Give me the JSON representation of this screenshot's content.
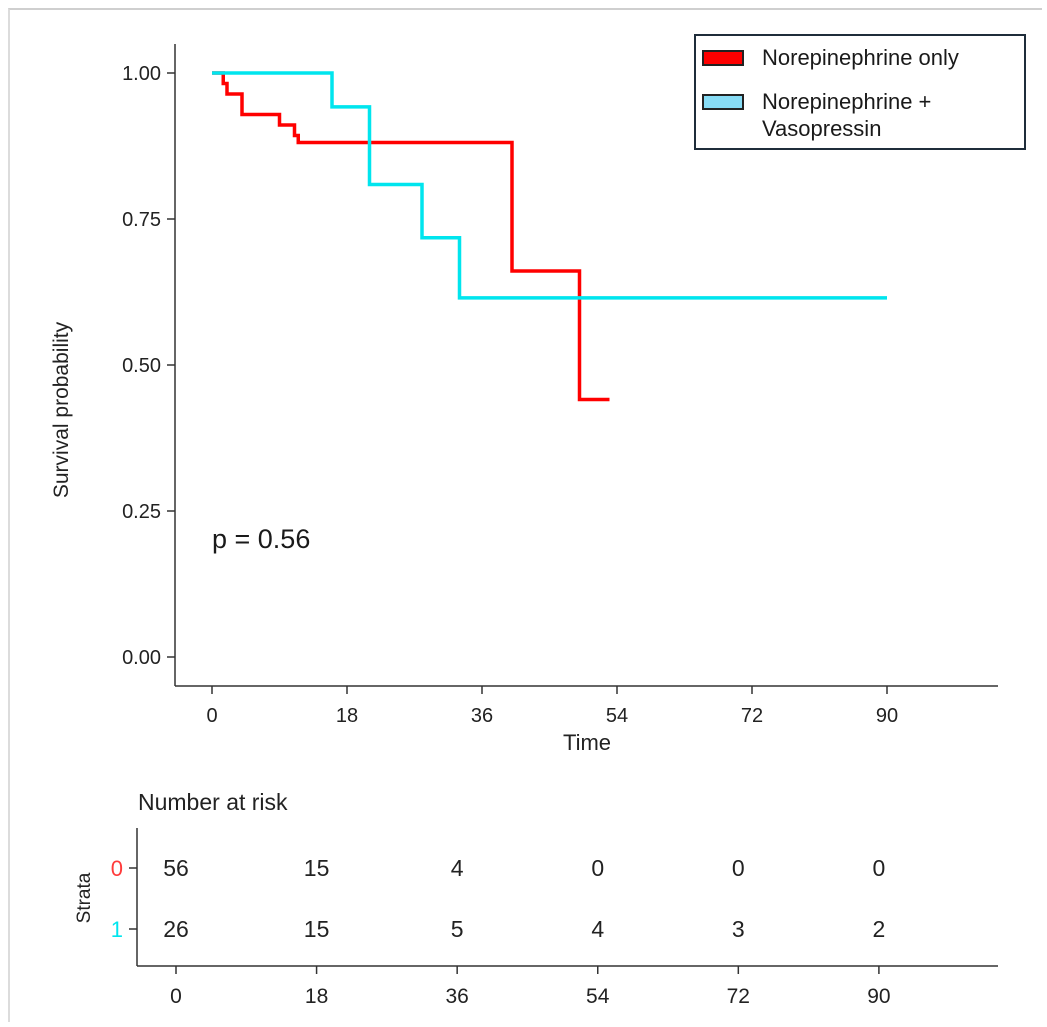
{
  "chart_data": {
    "type": "line",
    "subtype": "kaplan-meier",
    "xlabel": "Time",
    "ylabel": "Survival probability",
    "xlim": [
      -5,
      105
    ],
    "ylim": [
      0,
      1
    ],
    "xticks": [
      "0",
      "18",
      "36",
      "54",
      "72",
      "90"
    ],
    "xtick_values": [
      0,
      18,
      36,
      54,
      72,
      90
    ],
    "yticks": [
      "0.00",
      "0.25",
      "0.50",
      "0.75",
      "1.00"
    ],
    "ytick_values": [
      0,
      0.25,
      0.5,
      0.75,
      1.0
    ],
    "annotation": "p = 0.56",
    "legend_position": "top-right",
    "series": [
      {
        "name": "Norepinephrine only",
        "color": "#ff0000",
        "steps": [
          [
            0,
            1.0
          ],
          [
            1.5,
            0.982
          ],
          [
            2,
            0.964
          ],
          [
            3,
            0.964
          ],
          [
            4,
            0.929
          ],
          [
            9,
            0.911
          ],
          [
            11,
            0.893
          ],
          [
            11.5,
            0.881
          ],
          [
            40,
            0.661
          ],
          [
            49,
            0.441
          ],
          [
            53,
            0.441
          ]
        ]
      },
      {
        "name": "Norepinephrine +\nVasopressin",
        "color": "#00e5ee",
        "legend_color": "#87dcf5",
        "steps": [
          [
            0,
            1.0
          ],
          [
            16,
            0.942
          ],
          [
            21,
            0.809
          ],
          [
            28,
            0.718
          ],
          [
            33,
            0.615
          ],
          [
            90,
            0.615
          ]
        ]
      }
    ],
    "risk_table": {
      "title": "Number at risk",
      "axis_label": "Strata",
      "times": [
        "0",
        "18",
        "36",
        "54",
        "72",
        "90"
      ],
      "time_values": [
        0,
        18,
        36,
        54,
        72,
        90
      ],
      "rows": [
        {
          "stratum": "0",
          "color": "#ff3b3b",
          "counts": [
            "56",
            "15",
            "4",
            "0",
            "0",
            "0"
          ]
        },
        {
          "stratum": "1",
          "color": "#00e5ee",
          "counts": [
            "26",
            "15",
            "5",
            "4",
            "3",
            "2"
          ]
        }
      ]
    }
  }
}
